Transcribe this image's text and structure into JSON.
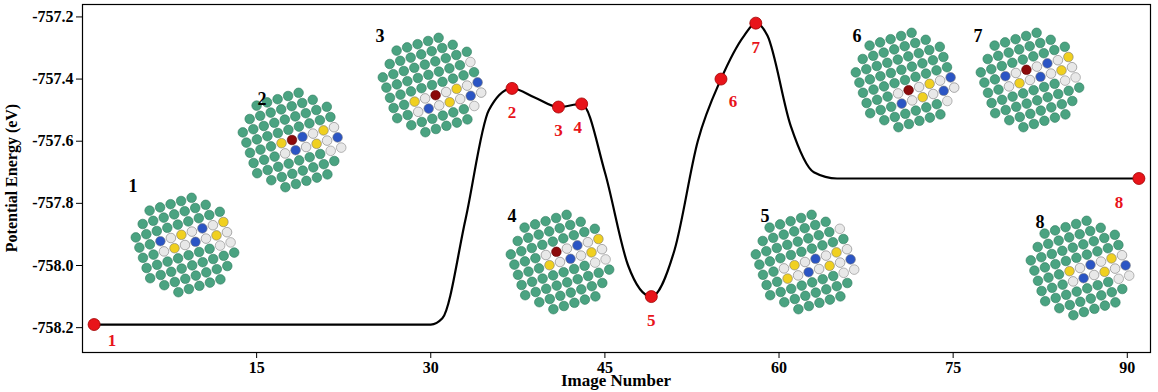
{
  "chart_data": {
    "type": "line",
    "x_label": "Image Number",
    "y_label": "Potential Energy (eV)",
    "xlim": [
      0,
      92
    ],
    "xticks": [
      15,
      30,
      45,
      60,
      75,
      90
    ],
    "ylim": [
      -758.28,
      -757.16
    ],
    "yticks": [
      -758.2,
      {
        "value": -758,
        "label": "-758.0"
      },
      -757.8,
      -757.6,
      -757.4,
      -757.2
    ],
    "grid": false,
    "series": [
      {
        "type": "line",
        "color": "#000000",
        "line_style": "solid",
        "x": [
          1,
          30,
          31,
          33,
          35,
          37,
          39,
          41,
          43,
          45,
          47,
          49,
          51,
          53,
          55,
          57,
          58,
          59,
          61,
          63,
          65,
          91
        ],
        "values": [
          -758.19,
          -758.19,
          -758.17,
          -757.85,
          -757.5,
          -757.43,
          -757.46,
          -757.49,
          -757.48,
          -757.7,
          -758.0,
          -758.1,
          -757.95,
          -757.6,
          -757.4,
          -757.26,
          -757.22,
          -757.26,
          -757.55,
          -757.7,
          -757.72,
          -757.72
        ]
      },
      {
        "type": "scatter",
        "color": "#e8141a",
        "marker": "circle",
        "x": [
          1,
          37,
          41,
          43,
          49,
          55,
          58,
          91
        ],
        "values": [
          -758.19,
          -757.43,
          -757.49,
          -757.48,
          -758.1,
          -757.4,
          -757.22,
          -757.72
        ],
        "labels": [
          "1",
          "2",
          "3",
          "4",
          "5",
          "6",
          "7",
          "8"
        ]
      }
    ],
    "inset_labels": [
      "1",
      "2",
      "3",
      "4",
      "5",
      "6",
      "7",
      "8"
    ]
  }
}
